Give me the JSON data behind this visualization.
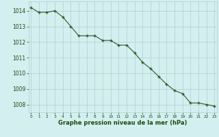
{
  "hours": [
    0,
    1,
    2,
    3,
    4,
    5,
    6,
    7,
    8,
    9,
    10,
    11,
    12,
    13,
    14,
    15,
    16,
    17,
    18,
    19,
    20,
    21,
    22,
    23
  ],
  "pressure": [
    1014.2,
    1013.9,
    1013.9,
    1014.0,
    1013.6,
    1013.0,
    1012.4,
    1012.4,
    1012.4,
    1012.1,
    1012.1,
    1011.8,
    1011.8,
    1011.3,
    1010.7,
    1010.3,
    1009.8,
    1009.3,
    1008.9,
    1008.7,
    1008.1,
    1008.1,
    1008.0,
    1007.9
  ],
  "line_color": "#2d5a27",
  "marker": "+",
  "background_color": "#d4efef",
  "grid_color": "#aecece",
  "xlabel": "Graphe pression niveau de la mer (hPa)",
  "xlabel_color": "#1a4a10",
  "tick_color": "#1a4a10",
  "ylim": [
    1007.5,
    1014.6
  ],
  "yticks": [
    1008,
    1009,
    1010,
    1011,
    1012,
    1013,
    1014
  ],
  "figsize": [
    3.2,
    2.0
  ],
  "dpi": 100
}
